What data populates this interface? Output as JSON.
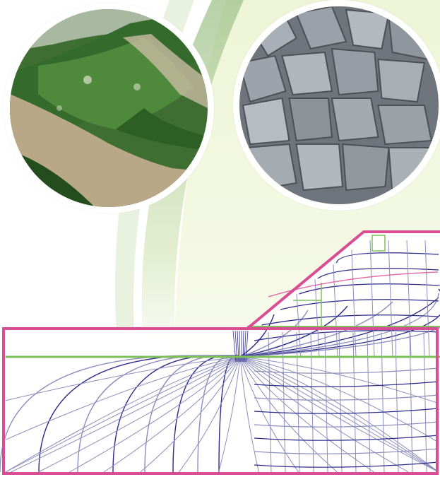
{
  "colors": {
    "background_light": "#eef5d6",
    "background_mid": "#dfeab4",
    "background_arc": "#b7d1a6",
    "frame_magenta": "#d94d95",
    "grid_blue": "#2d2a8a",
    "grid_light": "#8c8dbd",
    "green_line": "#7fbf5a",
    "river_water": "#b9a98a",
    "forest_green": "#2f5a26",
    "rock_grey": "#9ba2a9"
  },
  "images": {
    "river_photo": {
      "icon": "aerial-river-forest-photo"
    },
    "rocks_photo": {
      "icon": "crushed-rock-aggregate-photo"
    }
  },
  "diagram": {
    "type": "flow-net-embankment",
    "icon": "seepage-flow-net-diagram"
  }
}
